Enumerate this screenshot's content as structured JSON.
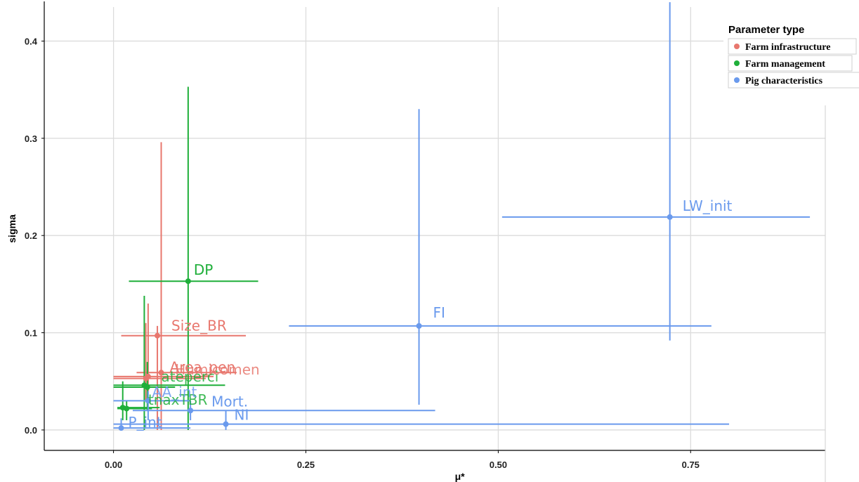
{
  "chart_data": {
    "type": "scatter",
    "title": "",
    "xlabel": "μ*",
    "ylabel": "sigma",
    "xlim": [
      -0.09,
      0.925
    ],
    "ylim": [
      -0.021,
      0.435
    ],
    "x_ticks": [
      "0.00",
      "0.25",
      "0.50",
      "0.75"
    ],
    "x_tick_values": [
      0,
      0.25,
      0.5,
      0.75
    ],
    "y_ticks": [
      "0.0",
      "0.1",
      "0.2",
      "0.3",
      "0.4"
    ],
    "y_tick_values": [
      0,
      0.1,
      0.2,
      0.3,
      0.4
    ],
    "grid": true,
    "legend_position": "top-right",
    "legend_title": "Parameter   type",
    "error_bars": "horizontal and vertical ranges around each point",
    "series": [
      {
        "name": "Farm infrastructure",
        "color": "#E8776E",
        "points": [
          {
            "label": "Size_BR",
            "x": 0.057,
            "y": 0.097,
            "x_range": [
              0.01,
              0.172
            ],
            "y_range": [
              0.0,
              0.107
            ]
          },
          {
            "label": "Area_pen",
            "x": 0.062,
            "y": 0.059,
            "x_range": [
              0.03,
              0.16
            ],
            "y_range": [
              0.0,
              0.296
            ]
          },
          {
            "label": "",
            "x": 0.045,
            "y": 0.055,
            "x_range": [
              0.0,
              0.13
            ],
            "y_range": [
              0.04,
              0.13
            ]
          },
          {
            "label": "",
            "x": 0.042,
            "y": 0.053,
            "x_range": [
              0.0,
              0.12
            ],
            "y_range": [
              0.03,
              0.11
            ]
          }
        ]
      },
      {
        "name": "Farm management",
        "color": "#1FAF3A",
        "points": [
          {
            "label": "DP",
            "x": 0.097,
            "y": 0.153,
            "x_range": [
              0.02,
              0.188
            ],
            "y_range": [
              0.0,
              0.353
            ]
          },
          {
            "label": "",
            "x": 0.04,
            "y": 0.046,
            "x_range": [
              0.0,
              0.145
            ],
            "y_range": [
              0.0,
              0.138
            ]
          },
          {
            "label": "",
            "x": 0.044,
            "y": 0.044,
            "x_range": [
              0.0,
              0.08
            ],
            "y_range": [
              0.02,
              0.07
            ]
          },
          {
            "label": "",
            "x": 0.012,
            "y": 0.023,
            "x_range": [
              0.005,
              0.06
            ],
            "y_range": [
              0.01,
              0.05
            ]
          },
          {
            "label": "",
            "x": 0.017,
            "y": 0.022,
            "x_range": [
              0.005,
              0.05
            ],
            "y_range": [
              0.01,
              0.03
            ]
          }
        ]
      },
      {
        "name": "Pig characteristics",
        "color": "#6A9AED",
        "points": [
          {
            "label": "LW_init",
            "x": 0.723,
            "y": 0.219,
            "x_range": [
              0.505,
              0.905
            ],
            "y_range": [
              0.092,
              0.44
            ]
          },
          {
            "label": "FI",
            "x": 0.397,
            "y": 0.107,
            "x_range": [
              0.228,
              0.777
            ],
            "y_range": [
              0.026,
              0.33
            ]
          },
          {
            "label": "Mort.",
            "x": 0.1,
            "y": 0.02,
            "x_range": [
              0.025,
              0.418
            ],
            "y_range": [
              0.01,
              0.03
            ]
          },
          {
            "label": "NI",
            "x": 0.146,
            "y": 0.006,
            "x_range": [
              0.0,
              0.8
            ],
            "y_range": [
              0.0,
              0.02
            ]
          },
          {
            "label": "P_int",
            "x": 0.01,
            "y": 0.002,
            "x_range": [
              0.0,
              0.1
            ],
            "y_range": [
              0.0,
              0.012
            ]
          },
          {
            "label": "",
            "x": 0.045,
            "y": 0.03,
            "x_range": [
              0.0,
              0.1
            ],
            "y_range": [
              0.01,
              0.04
            ]
          }
        ]
      }
    ],
    "overlapping_text_labels": [
      "ateperci",
      "tnaxTBR",
      "AA_int",
      "Humicomen"
    ]
  }
}
